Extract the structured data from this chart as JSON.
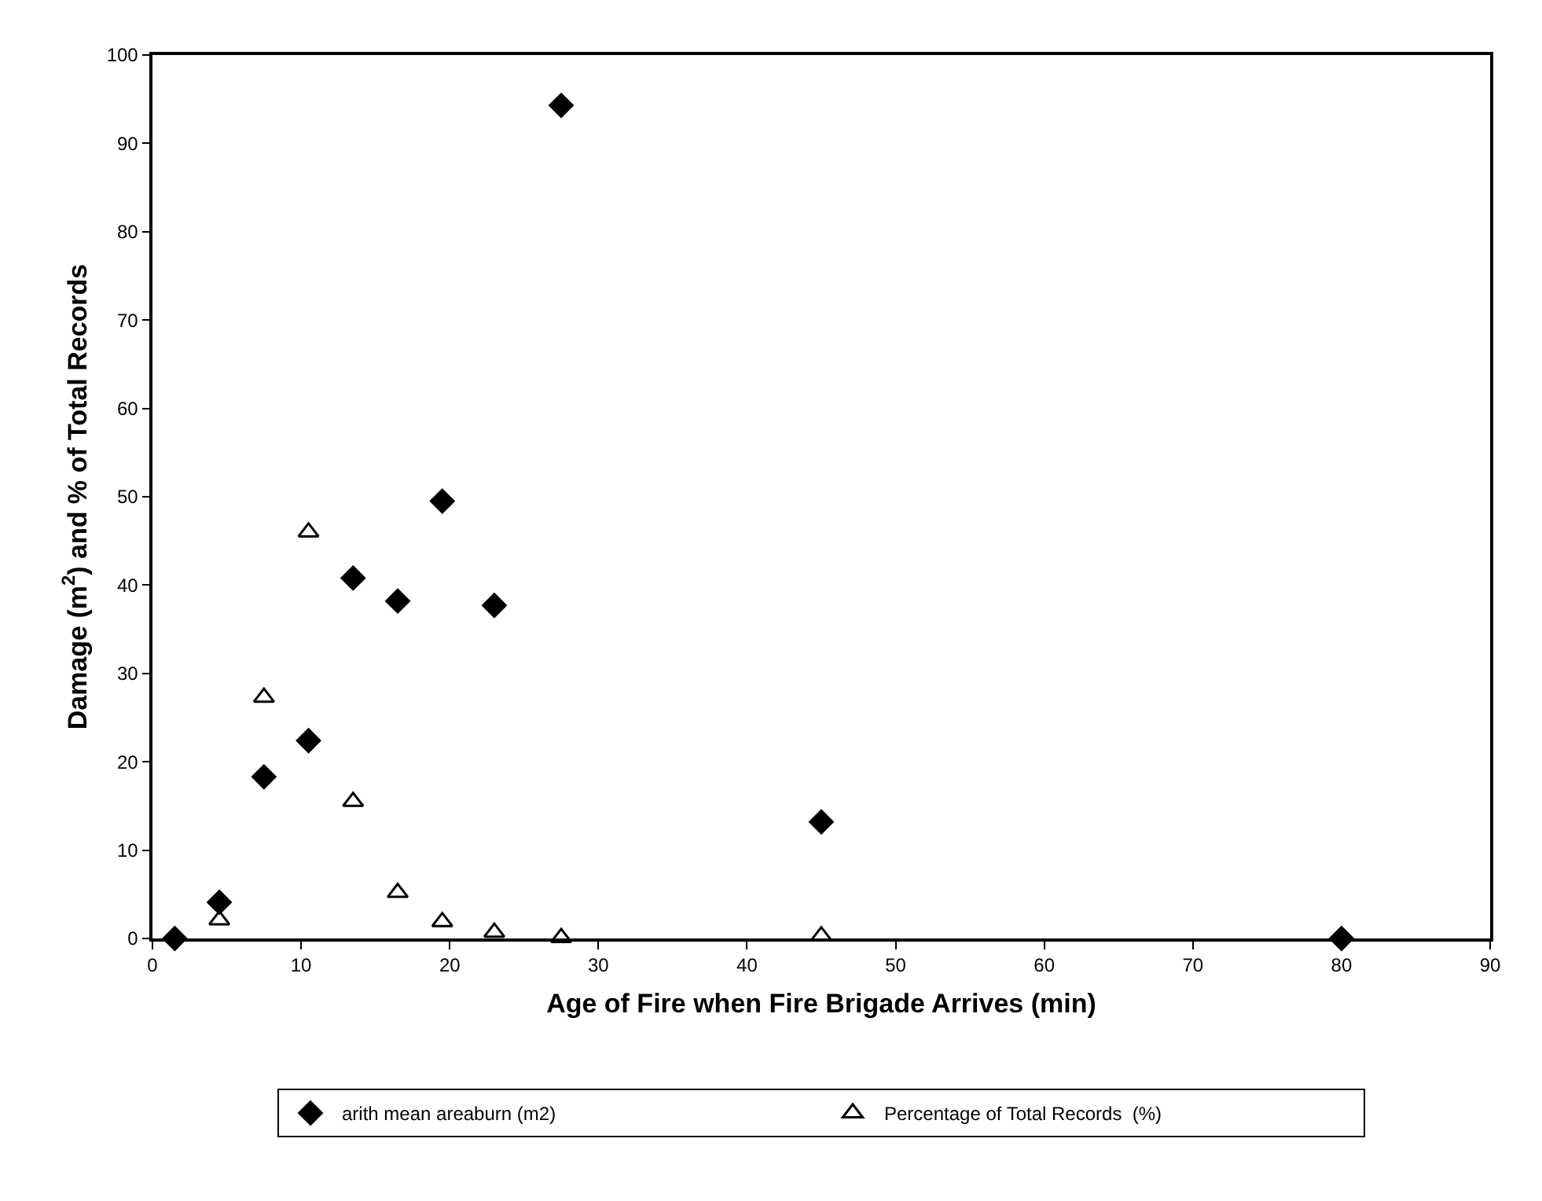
{
  "chart_data": {
    "type": "scatter",
    "xlabel": "Age of Fire when Fire Brigade Arrives (min)",
    "ylabel": "Damage (m$^{2}$) and % of Total Records",
    "x": [
      1.5,
      4.5,
      7.5,
      10.5,
      13.5,
      16.5,
      19.5,
      23,
      27.5,
      45,
      80
    ],
    "series": [
      {
        "name": "arith mean areaburn (m2)",
        "color": "#000000",
        "marker": "diamond",
        "values": [
          0,
          4.1,
          18.3,
          22.4,
          40.8,
          38.2,
          49.5,
          37.7,
          94.3,
          13.2,
          0
        ]
      },
      {
        "name": "Percentage of Total Records  (%)",
        "color": "#000000",
        "marker": "triangle",
        "values": [
          null,
          2.1,
          27.3,
          46.0,
          15.5,
          5.2,
          1.9,
          0.7,
          0.1,
          0.3,
          null
        ]
      }
    ],
    "xlim": [
      0,
      90
    ],
    "xticks": [
      0,
      10,
      20,
      30,
      40,
      50,
      60,
      70,
      80,
      90
    ],
    "ylim": [
      0,
      100
    ],
    "yticks": [
      0,
      10,
      20,
      30,
      40,
      50,
      60,
      70,
      80,
      90,
      100
    ],
    "legend": "bottom"
  }
}
